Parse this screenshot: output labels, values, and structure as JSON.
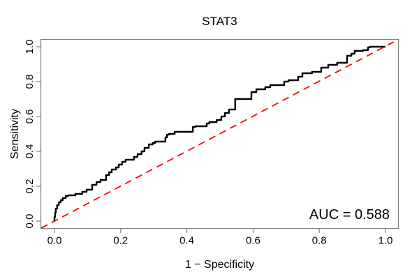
{
  "chart_data": {
    "type": "line",
    "subtype": "roc-curve-step-plot",
    "title": "STAT3",
    "xlabel": "1 − Specificity",
    "ylabel": "Sensitivity",
    "annotation": "AUC = 0.588",
    "auc": 0.588,
    "xlim": [
      0,
      1
    ],
    "ylim": [
      0,
      1
    ],
    "x_ticks": [
      0.0,
      0.2,
      0.4,
      0.6,
      0.8,
      1.0
    ],
    "y_ticks": [
      0.0,
      0.2,
      0.4,
      0.6,
      0.8,
      1.0
    ],
    "grid": false,
    "legend": "none",
    "colors": {
      "curve": "#000000",
      "reference_line": "#ff0000",
      "box_and_ticks": "#808080",
      "text": "#000000",
      "background": "#ffffff"
    },
    "series": [
      {
        "name": "ROC curve (STAT3)",
        "style": "step",
        "color": "#000000",
        "points": [
          [
            0.0,
            0.0
          ],
          [
            0.002,
            0.024
          ],
          [
            0.004,
            0.048
          ],
          [
            0.008,
            0.072
          ],
          [
            0.013,
            0.092
          ],
          [
            0.019,
            0.108
          ],
          [
            0.025,
            0.12
          ],
          [
            0.034,
            0.132
          ],
          [
            0.042,
            0.144
          ],
          [
            0.063,
            0.148
          ],
          [
            0.084,
            0.156
          ],
          [
            0.097,
            0.168
          ],
          [
            0.114,
            0.18
          ],
          [
            0.127,
            0.208
          ],
          [
            0.139,
            0.224
          ],
          [
            0.156,
            0.236
          ],
          [
            0.165,
            0.264
          ],
          [
            0.173,
            0.28
          ],
          [
            0.186,
            0.296
          ],
          [
            0.194,
            0.308
          ],
          [
            0.215,
            0.34
          ],
          [
            0.222,
            0.352
          ],
          [
            0.24,
            0.352
          ],
          [
            0.251,
            0.368
          ],
          [
            0.263,
            0.384
          ],
          [
            0.272,
            0.4
          ],
          [
            0.285,
            0.42
          ],
          [
            0.297,
            0.44
          ],
          [
            0.304,
            0.448
          ],
          [
            0.335,
            0.456
          ],
          [
            0.34,
            0.48
          ],
          [
            0.346,
            0.496
          ],
          [
            0.363,
            0.5
          ],
          [
            0.37,
            0.512
          ],
          [
            0.418,
            0.512
          ],
          [
            0.426,
            0.54
          ],
          [
            0.46,
            0.544
          ],
          [
            0.468,
            0.56
          ],
          [
            0.49,
            0.568
          ],
          [
            0.504,
            0.58
          ],
          [
            0.515,
            0.6
          ],
          [
            0.527,
            0.62
          ],
          [
            0.546,
            0.64
          ],
          [
            0.553,
            0.7
          ],
          [
            0.595,
            0.7
          ],
          [
            0.61,
            0.74
          ],
          [
            0.637,
            0.756
          ],
          [
            0.652,
            0.768
          ],
          [
            0.694,
            0.78
          ],
          [
            0.707,
            0.8
          ],
          [
            0.736,
            0.808
          ],
          [
            0.749,
            0.828
          ],
          [
            0.778,
            0.848
          ],
          [
            0.806,
            0.856
          ],
          [
            0.827,
            0.88
          ],
          [
            0.854,
            0.896
          ],
          [
            0.884,
            0.908
          ],
          [
            0.897,
            0.948
          ],
          [
            0.907,
            0.96
          ],
          [
            0.932,
            0.976
          ],
          [
            0.947,
            0.98
          ],
          [
            0.953,
            0.996
          ],
          [
            1.0,
            1.0
          ]
        ]
      },
      {
        "name": "Chance diagonal reference",
        "style": "dashed",
        "color": "#ff0000",
        "points": [
          [
            0,
            0
          ],
          [
            1,
            1
          ]
        ]
      }
    ]
  }
}
